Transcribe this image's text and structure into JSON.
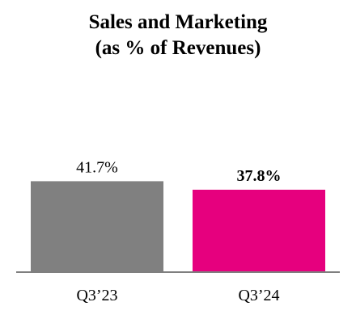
{
  "chart_data": {
    "type": "bar",
    "title": "Sales and Marketing",
    "subtitle": "(as % of Revenues)",
    "categories": [
      "Q3’23",
      "Q3’24"
    ],
    "values": [
      41.7,
      37.8
    ],
    "value_labels": [
      "41.7%",
      "37.8%"
    ],
    "value_label_bold": [
      false,
      true
    ],
    "colors": [
      "#808080",
      "#E6007E"
    ],
    "axis_color": "#7f7f7f",
    "ylim": [
      0,
      100
    ],
    "grid": false,
    "legend": "none"
  }
}
